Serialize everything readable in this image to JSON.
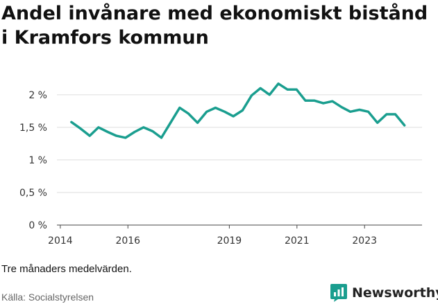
{
  "colors": {
    "line": "#1a9e8f",
    "grid": "#dddddd",
    "axis": "#444444",
    "brand": "#1a9e8f"
  },
  "chart_data": {
    "type": "line",
    "title": "Andel invånare med ekonomiskt bistånd i Kramfors kommun",
    "note": "Tre månaders medelvärden.",
    "source": "Källa: Socialstyrelsen",
    "xlabel": "",
    "ylabel": "",
    "ylim": [
      0,
      2.2
    ],
    "xlim": [
      2013.9,
      2024.7
    ],
    "yticks": [
      0,
      0.5,
      1,
      1.5,
      2
    ],
    "ytick_labels": [
      "0 %",
      "0,5 %",
      "1 %",
      "1,5 %",
      "2 %"
    ],
    "xticks": [
      2014,
      2016,
      2019,
      2021,
      2023
    ],
    "xtick_labels": [
      "2014",
      "2016",
      "2019",
      "2021",
      "2023"
    ],
    "grid": "horizontal",
    "series": [
      {
        "x": [
          2014.33,
          2014.6,
          2014.87,
          2015.13,
          2015.4,
          2015.66,
          2015.93,
          2016.2,
          2016.46,
          2016.73,
          2016.99,
          2017.26,
          2017.53,
          2017.79,
          2018.06,
          2018.33,
          2018.59,
          2018.86,
          2019.12,
          2019.39,
          2019.66,
          2019.92,
          2020.19,
          2020.45,
          2020.72,
          2020.99,
          2021.25,
          2021.52,
          2021.78,
          2022.05,
          2022.32,
          2022.58,
          2022.85,
          2023.11,
          2023.38,
          2023.65,
          2023.91,
          2024.18
        ],
        "values": [
          1.58,
          1.48,
          1.37,
          1.5,
          1.43,
          1.37,
          1.34,
          1.43,
          1.5,
          1.44,
          1.34,
          1.57,
          1.8,
          1.71,
          1.57,
          1.74,
          1.8,
          1.74,
          1.67,
          1.76,
          1.99,
          2.1,
          2.0,
          2.17,
          2.08,
          2.08,
          1.91,
          1.91,
          1.87,
          1.9,
          1.81,
          1.74,
          1.77,
          1.74,
          1.57,
          1.7,
          1.7,
          1.53
        ]
      }
    ]
  },
  "footer": {
    "brand": "Newsworthy",
    "brand_icon": "newsworthy-chart-bubble-icon"
  }
}
